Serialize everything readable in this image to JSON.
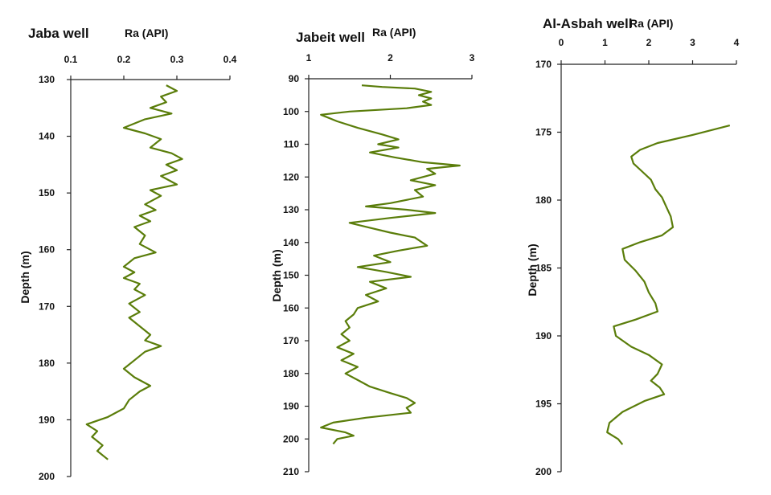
{
  "chart_data": [
    {
      "type": "line",
      "title": "Jaba well",
      "subtitle": "Ra (API)",
      "xlabel": "Ra (API)",
      "ylabel": "Depth (m)",
      "xlim": [
        0.1,
        0.4
      ],
      "ylim": [
        130,
        200
      ],
      "x_ticks": [
        "0.1",
        "0.2",
        "0.3",
        "0.4"
      ],
      "y_ticks": [
        "130",
        "140",
        "150",
        "160",
        "170",
        "180",
        "190",
        "200"
      ],
      "series": [
        {
          "color": "#5a7d0a",
          "points": [
            {
              "x": 0.28,
              "y": 131
            },
            {
              "x": 0.3,
              "y": 132
            },
            {
              "x": 0.27,
              "y": 133
            },
            {
              "x": 0.28,
              "y": 134
            },
            {
              "x": 0.25,
              "y": 135
            },
            {
              "x": 0.29,
              "y": 136
            },
            {
              "x": 0.24,
              "y": 137
            },
            {
              "x": 0.2,
              "y": 138.5
            },
            {
              "x": 0.24,
              "y": 139.5
            },
            {
              "x": 0.27,
              "y": 140.5
            },
            {
              "x": 0.25,
              "y": 142
            },
            {
              "x": 0.29,
              "y": 143
            },
            {
              "x": 0.31,
              "y": 144
            },
            {
              "x": 0.28,
              "y": 145
            },
            {
              "x": 0.3,
              "y": 146
            },
            {
              "x": 0.27,
              "y": 147
            },
            {
              "x": 0.3,
              "y": 148.5
            },
            {
              "x": 0.25,
              "y": 149.5
            },
            {
              "x": 0.27,
              "y": 150.5
            },
            {
              "x": 0.24,
              "y": 152
            },
            {
              "x": 0.26,
              "y": 153
            },
            {
              "x": 0.23,
              "y": 154
            },
            {
              "x": 0.25,
              "y": 155
            },
            {
              "x": 0.22,
              "y": 156
            },
            {
              "x": 0.24,
              "y": 157.5
            },
            {
              "x": 0.23,
              "y": 159
            },
            {
              "x": 0.26,
              "y": 160.5
            },
            {
              "x": 0.22,
              "y": 161.5
            },
            {
              "x": 0.2,
              "y": 163
            },
            {
              "x": 0.22,
              "y": 164
            },
            {
              "x": 0.2,
              "y": 165
            },
            {
              "x": 0.23,
              "y": 166
            },
            {
              "x": 0.22,
              "y": 167
            },
            {
              "x": 0.24,
              "y": 168
            },
            {
              "x": 0.21,
              "y": 169.5
            },
            {
              "x": 0.23,
              "y": 171
            },
            {
              "x": 0.21,
              "y": 172
            },
            {
              "x": 0.23,
              "y": 173.5
            },
            {
              "x": 0.25,
              "y": 175
            },
            {
              "x": 0.24,
              "y": 176
            },
            {
              "x": 0.27,
              "y": 177
            },
            {
              "x": 0.24,
              "y": 178
            },
            {
              "x": 0.22,
              "y": 179.5
            },
            {
              "x": 0.2,
              "y": 181
            },
            {
              "x": 0.22,
              "y": 182.5
            },
            {
              "x": 0.25,
              "y": 184
            },
            {
              "x": 0.23,
              "y": 185
            },
            {
              "x": 0.21,
              "y": 186.5
            },
            {
              "x": 0.2,
              "y": 188
            },
            {
              "x": 0.17,
              "y": 189.5
            },
            {
              "x": 0.13,
              "y": 190.8
            },
            {
              "x": 0.15,
              "y": 192
            },
            {
              "x": 0.14,
              "y": 193
            },
            {
              "x": 0.16,
              "y": 194.5
            },
            {
              "x": 0.15,
              "y": 195.5
            },
            {
              "x": 0.17,
              "y": 197
            }
          ]
        }
      ]
    },
    {
      "type": "line",
      "title": "Jabeit well",
      "subtitle": "Ra (API)",
      "xlabel": "Ra (API)",
      "ylabel": "Depth (m)",
      "xlim": [
        1,
        3
      ],
      "ylim": [
        90,
        210
      ],
      "x_ticks": [
        "1",
        "2",
        "3"
      ],
      "y_ticks": [
        "90",
        "100",
        "110",
        "120",
        "130",
        "140",
        "150",
        "160",
        "170",
        "180",
        "190",
        "200",
        "210"
      ],
      "series": [
        {
          "color": "#5a7d0a",
          "points": [
            {
              "x": 1.65,
              "y": 92
            },
            {
              "x": 1.9,
              "y": 92.5
            },
            {
              "x": 2.3,
              "y": 93
            },
            {
              "x": 2.5,
              "y": 94
            },
            {
              "x": 2.35,
              "y": 95
            },
            {
              "x": 2.5,
              "y": 96
            },
            {
              "x": 2.4,
              "y": 97
            },
            {
              "x": 2.5,
              "y": 98
            },
            {
              "x": 2.2,
              "y": 99
            },
            {
              "x": 1.5,
              "y": 100
            },
            {
              "x": 1.15,
              "y": 101
            },
            {
              "x": 1.35,
              "y": 103
            },
            {
              "x": 1.6,
              "y": 105
            },
            {
              "x": 1.9,
              "y": 107
            },
            {
              "x": 2.1,
              "y": 108.5
            },
            {
              "x": 1.85,
              "y": 110
            },
            {
              "x": 2.1,
              "y": 111
            },
            {
              "x": 1.75,
              "y": 112.5
            },
            {
              "x": 2.05,
              "y": 114
            },
            {
              "x": 2.4,
              "y": 115.5
            },
            {
              "x": 2.85,
              "y": 116.5
            },
            {
              "x": 2.45,
              "y": 117.5
            },
            {
              "x": 2.55,
              "y": 119
            },
            {
              "x": 2.25,
              "y": 121
            },
            {
              "x": 2.55,
              "y": 122.5
            },
            {
              "x": 2.3,
              "y": 124
            },
            {
              "x": 2.4,
              "y": 126
            },
            {
              "x": 2.0,
              "y": 128
            },
            {
              "x": 1.7,
              "y": 129
            },
            {
              "x": 2.2,
              "y": 130
            },
            {
              "x": 2.55,
              "y": 131
            },
            {
              "x": 2.0,
              "y": 132.5
            },
            {
              "x": 1.5,
              "y": 134
            },
            {
              "x": 1.75,
              "y": 135.5
            },
            {
              "x": 2.0,
              "y": 137
            },
            {
              "x": 2.3,
              "y": 138.5
            },
            {
              "x": 2.45,
              "y": 141
            },
            {
              "x": 2.1,
              "y": 142.5
            },
            {
              "x": 1.8,
              "y": 144
            },
            {
              "x": 2.0,
              "y": 146
            },
            {
              "x": 1.6,
              "y": 147.5
            },
            {
              "x": 1.95,
              "y": 149
            },
            {
              "x": 2.25,
              "y": 150.5
            },
            {
              "x": 1.75,
              "y": 152
            },
            {
              "x": 1.95,
              "y": 154
            },
            {
              "x": 1.7,
              "y": 156
            },
            {
              "x": 1.85,
              "y": 158
            },
            {
              "x": 1.6,
              "y": 160
            },
            {
              "x": 1.55,
              "y": 162
            },
            {
              "x": 1.45,
              "y": 164
            },
            {
              "x": 1.5,
              "y": 166
            },
            {
              "x": 1.4,
              "y": 168
            },
            {
              "x": 1.5,
              "y": 170
            },
            {
              "x": 1.35,
              "y": 172
            },
            {
              "x": 1.55,
              "y": 174
            },
            {
              "x": 1.4,
              "y": 176
            },
            {
              "x": 1.6,
              "y": 178
            },
            {
              "x": 1.45,
              "y": 180
            },
            {
              "x": 1.6,
              "y": 182
            },
            {
              "x": 1.75,
              "y": 184
            },
            {
              "x": 2.0,
              "y": 186
            },
            {
              "x": 2.2,
              "y": 187.5
            },
            {
              "x": 2.3,
              "y": 189
            },
            {
              "x": 2.2,
              "y": 190.5
            },
            {
              "x": 2.25,
              "y": 192
            },
            {
              "x": 1.7,
              "y": 193.5
            },
            {
              "x": 1.3,
              "y": 195
            },
            {
              "x": 1.15,
              "y": 196.5
            },
            {
              "x": 1.45,
              "y": 198
            },
            {
              "x": 1.55,
              "y": 199
            },
            {
              "x": 1.35,
              "y": 200
            },
            {
              "x": 1.3,
              "y": 201.5
            }
          ]
        }
      ]
    },
    {
      "type": "line",
      "title": "Al-Asbah well",
      "subtitle": "Ra (API)",
      "xlabel": "Ra (API)",
      "ylabel": "Depth (m)",
      "xlim": [
        0,
        4
      ],
      "ylim": [
        170,
        200
      ],
      "x_ticks": [
        "0",
        "1",
        "2",
        "3",
        "4"
      ],
      "y_ticks": [
        "170",
        "175",
        "180",
        "185",
        "190",
        "195",
        "200"
      ],
      "series": [
        {
          "color": "#5a7d0a",
          "points": [
            {
              "x": 3.85,
              "y": 174.5
            },
            {
              "x": 3.0,
              "y": 175.2
            },
            {
              "x": 2.2,
              "y": 175.8
            },
            {
              "x": 1.8,
              "y": 176.3
            },
            {
              "x": 1.6,
              "y": 176.8
            },
            {
              "x": 1.65,
              "y": 177.3
            },
            {
              "x": 1.85,
              "y": 177.9
            },
            {
              "x": 2.05,
              "y": 178.5
            },
            {
              "x": 2.15,
              "y": 179.2
            },
            {
              "x": 2.3,
              "y": 179.8
            },
            {
              "x": 2.4,
              "y": 180.5
            },
            {
              "x": 2.5,
              "y": 181.2
            },
            {
              "x": 2.55,
              "y": 182.0
            },
            {
              "x": 2.3,
              "y": 182.6
            },
            {
              "x": 1.8,
              "y": 183.1
            },
            {
              "x": 1.4,
              "y": 183.6
            },
            {
              "x": 1.45,
              "y": 184.4
            },
            {
              "x": 1.7,
              "y": 185.2
            },
            {
              "x": 1.9,
              "y": 186.0
            },
            {
              "x": 2.0,
              "y": 186.8
            },
            {
              "x": 2.15,
              "y": 187.6
            },
            {
              "x": 2.2,
              "y": 188.2
            },
            {
              "x": 1.7,
              "y": 188.8
            },
            {
              "x": 1.2,
              "y": 189.3
            },
            {
              "x": 1.25,
              "y": 190.0
            },
            {
              "x": 1.6,
              "y": 190.8
            },
            {
              "x": 2.0,
              "y": 191.4
            },
            {
              "x": 2.3,
              "y": 192.1
            },
            {
              "x": 2.2,
              "y": 192.8
            },
            {
              "x": 2.05,
              "y": 193.3
            },
            {
              "x": 2.25,
              "y": 193.8
            },
            {
              "x": 2.35,
              "y": 194.3
            },
            {
              "x": 1.9,
              "y": 194.8
            },
            {
              "x": 1.4,
              "y": 195.6
            },
            {
              "x": 1.1,
              "y": 196.4
            },
            {
              "x": 1.05,
              "y": 197.1
            },
            {
              "x": 1.3,
              "y": 197.6
            },
            {
              "x": 1.4,
              "y": 198.0
            }
          ]
        }
      ]
    }
  ]
}
